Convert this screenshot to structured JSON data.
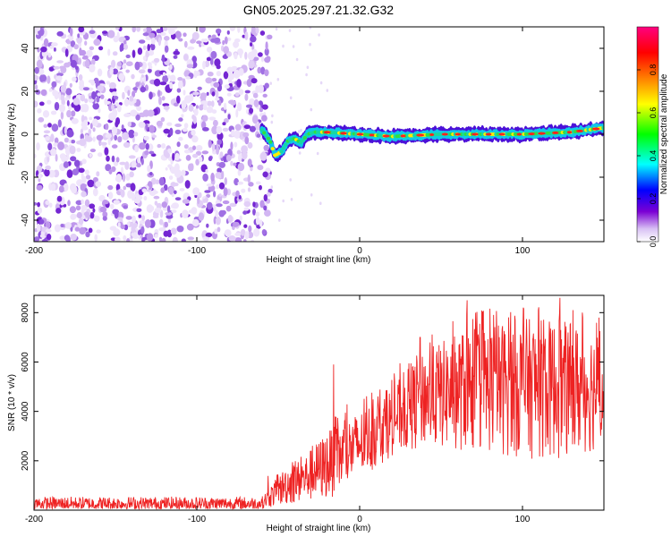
{
  "title": "GN05.2025.297.21.32.G32",
  "chart_data": [
    {
      "type": "heatmap",
      "title": "GN05.2025.297.21.32.G32",
      "xlabel": "Height of straight line (km)",
      "ylabel": "Frequency (Hz)",
      "xlim": [
        -200,
        150
      ],
      "ylim": [
        -50,
        50
      ],
      "xticks": [
        -200,
        -100,
        0,
        100
      ],
      "yticks": [
        -40,
        -20,
        0,
        20,
        40
      ],
      "colorbar": {
        "label": "Normalized spectral amplitude",
        "range": [
          0,
          1
        ],
        "ticks": [
          0,
          0.2,
          0.4,
          0.6,
          0.8
        ],
        "colors": [
          "#ffffff",
          "#7b00d4",
          "#0000ff",
          "#00ffff",
          "#00ff00",
          "#ffff00",
          "#ff8000",
          "#ff0000",
          "#ff0080"
        ]
      },
      "noise_region_x": [
        -200,
        -58
      ],
      "signal_track": [
        {
          "x": -60,
          "f": 2
        },
        {
          "x": -55,
          "f": -3
        },
        {
          "x": -52,
          "f": -10
        },
        {
          "x": -48,
          "f": -8
        },
        {
          "x": -44,
          "f": -3
        },
        {
          "x": -40,
          "f": -2
        },
        {
          "x": -36,
          "f": -4
        },
        {
          "x": -32,
          "f": 0
        },
        {
          "x": -28,
          "f": 1
        },
        {
          "x": -22,
          "f": 1
        },
        {
          "x": 0,
          "f": 0
        },
        {
          "x": 20,
          "f": -1
        },
        {
          "x": 50,
          "f": 0
        },
        {
          "x": 100,
          "f": 0
        },
        {
          "x": 130,
          "f": 1
        },
        {
          "x": 150,
          "f": 3
        }
      ]
    },
    {
      "type": "line",
      "xlabel": "Height of straight line (km)",
      "ylabel": "SNR (10 * v/v)",
      "xlim": [
        -200,
        150
      ],
      "ylim": [
        0,
        8700
      ],
      "xticks": [
        -200,
        -100,
        0,
        100
      ],
      "yticks": [
        2000,
        4000,
        6000,
        8000
      ],
      "color": "#ee2222",
      "envelope": [
        {
          "x": -200,
          "min": 50,
          "max": 550
        },
        {
          "x": -60,
          "min": 50,
          "max": 550
        },
        {
          "x": -45,
          "min": 200,
          "max": 1800
        },
        {
          "x": -35,
          "min": 300,
          "max": 2100
        },
        {
          "x": -20,
          "min": 400,
          "max": 3200
        },
        {
          "x": 0,
          "min": 1200,
          "max": 4000
        },
        {
          "x": 20,
          "min": 2200,
          "max": 5000
        },
        {
          "x": 40,
          "min": 2500,
          "max": 6500
        },
        {
          "x": 70,
          "min": 2300,
          "max": 7500
        },
        {
          "x": 100,
          "min": 2100,
          "max": 7800
        },
        {
          "x": 130,
          "min": 2000,
          "max": 7600
        },
        {
          "x": 150,
          "min": 2500,
          "max": 7200
        }
      ],
      "spikes": [
        {
          "x": -16,
          "y": 5900
        },
        {
          "x": 37,
          "y": 7000
        },
        {
          "x": 66,
          "y": 8500
        },
        {
          "x": 123,
          "y": 8600
        },
        {
          "x": 131,
          "y": 8100
        },
        {
          "x": 147,
          "y": 7800
        }
      ]
    }
  ]
}
